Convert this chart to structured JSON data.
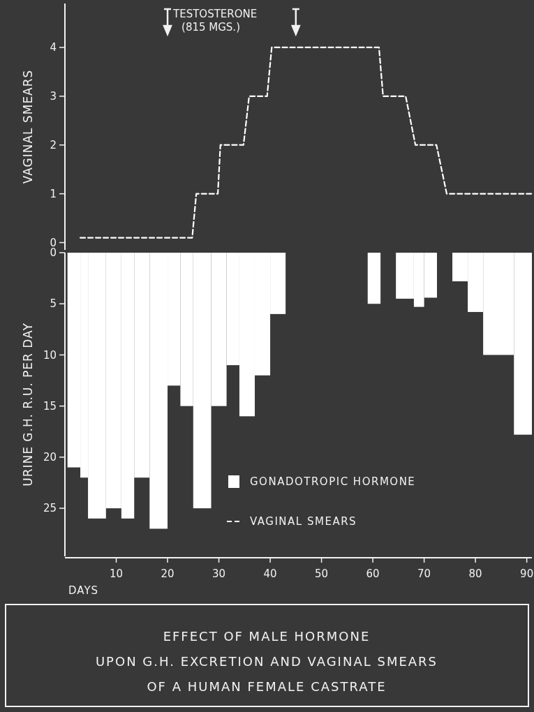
{
  "chart_data": [
    {
      "type": "line",
      "ylabel": "VAGINAL SMEARS",
      "xlim": [
        0,
        91
      ],
      "ylim": [
        -0.15,
        4.9
      ],
      "yticks": [
        0,
        1,
        2,
        3,
        4
      ],
      "tick_labels": "y",
      "grid": false,
      "marker": "none",
      "line_style": "dashed",
      "ref_lines": [
        {
          "axis": "x",
          "value": 20,
          "label": "TESTOSTERONE\n(815 MGS.)"
        },
        {
          "axis": "x",
          "value": 45
        }
      ],
      "series": [
        {
          "name": "VAGINAL SMEARS",
          "color": "#ffffff",
          "x": [
            3,
            24.8,
            25.6,
            29.8,
            30.3,
            34.8,
            35.9,
            39.4,
            40.3,
            61.2,
            62,
            66.4,
            68.3,
            72.4,
            74.4,
            90.9
          ],
          "values": [
            0.1,
            0.1,
            1,
            1,
            2,
            2,
            3,
            3,
            4,
            4,
            3,
            3,
            2,
            2,
            1,
            1
          ]
        }
      ]
    },
    {
      "type": "histogram",
      "title": "EFFECT OF MALE HORMONE\nUPON G.H. EXCRETION AND VAGINAL SMEARS\nOF A HUMAN FEMALE CASTRATE",
      "xlabel": "DAYS",
      "ylabel": "URINE G.H. R.U. PER DAY",
      "xlim": [
        0,
        91
      ],
      "xticks": [
        10,
        20,
        30,
        40,
        50,
        60,
        70,
        80,
        90
      ],
      "ylim": [
        29.7,
        0
      ],
      "yticks": [
        0,
        5,
        10,
        15,
        20,
        25
      ],
      "grid": false,
      "legend": "bottom",
      "bins": [
        0.5,
        3,
        4.5,
        8,
        11,
        13.5,
        16.5,
        20,
        22.5,
        25,
        28.5,
        31.5,
        34,
        37,
        40,
        43,
        59,
        61.5,
        64.5,
        68,
        70,
        72.5,
        75.5,
        78.5,
        81.5,
        87.5,
        91
      ],
      "series": [
        {
          "name": "GONADOTROPIC HORMONE",
          "color": "#ffffff",
          "values": [
            21,
            22,
            26,
            25,
            26,
            22,
            27,
            13,
            15,
            25,
            15,
            11,
            16,
            12,
            6,
            0,
            5,
            0,
            4.5,
            5.3,
            4.4,
            0,
            2.8,
            5.8,
            10,
            17.8
          ]
        }
      ]
    }
  ]
}
